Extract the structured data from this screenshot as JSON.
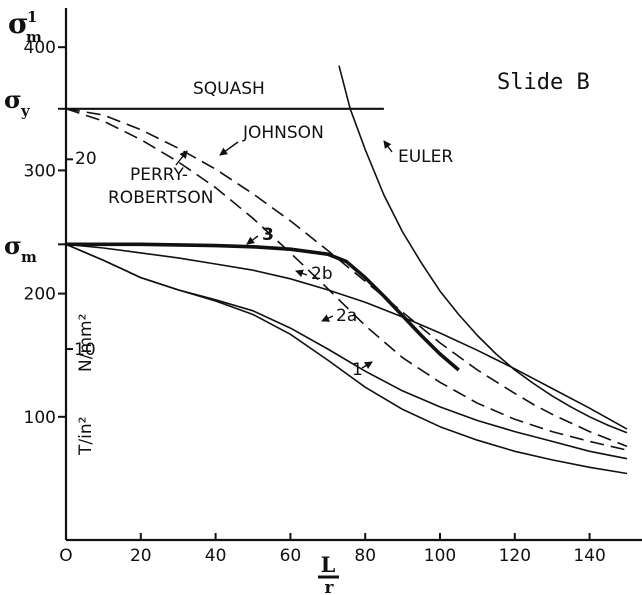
{
  "chart_data": {
    "type": "line",
    "title": "",
    "annotation": "Slide B",
    "xlabel": {
      "numerator": "L",
      "denominator": "r"
    },
    "ylabel": "σ'm",
    "ylabel_symbol": "σ",
    "ylabel_sub": "m",
    "ylabel_sup": "1",
    "xlim": [
      0,
      150
    ],
    "ylim": [
      0,
      420
    ],
    "x_ticks": [
      {
        "value": 0,
        "label": "O"
      },
      {
        "value": 20,
        "label": "20"
      },
      {
        "value": 40,
        "label": "40"
      },
      {
        "value": 60,
        "label": "60"
      },
      {
        "value": 80,
        "label": "80"
      },
      {
        "value": 100,
        "label": "100"
      },
      {
        "value": 120,
        "label": "120"
      },
      {
        "value": 140,
        "label": "140"
      }
    ],
    "y_ticks": [
      {
        "value": 100,
        "label": "100"
      },
      {
        "value": 200,
        "label": "200"
      },
      {
        "value": 300,
        "label": "300"
      },
      {
        "value": 400,
        "label": "400"
      }
    ],
    "y_named_levels": [
      {
        "value": 350,
        "sym": "σ",
        "sub": "y"
      },
      {
        "value": 240,
        "sym": "σ",
        "sub": "m"
      }
    ],
    "secondary_axis": {
      "unit_top": "N/mm²",
      "unit_bottom": "T/in²",
      "ticks": [
        {
          "value": 20,
          "label": "20",
          "at_primary": 309
        },
        {
          "value": 10,
          "label": "10",
          "at_primary": 155
        }
      ]
    },
    "series": [
      {
        "name": "SQUASH",
        "style": "solid",
        "width": 2.2,
        "x": [
          0,
          85
        ],
        "y": [
          350,
          350
        ]
      },
      {
        "name": "EULER",
        "style": "solid",
        "width": 1.6,
        "x": [
          73,
          76,
          80,
          85,
          90,
          95,
          100,
          105,
          110,
          115,
          120,
          125,
          130,
          135,
          140,
          145,
          150
        ],
        "y": [
          385,
          350,
          317,
          280,
          250,
          225,
          202,
          183,
          166,
          151,
          138,
          127,
          117,
          108,
          100,
          93,
          87
        ]
      },
      {
        "name": "JOHNSON",
        "style": "dashed",
        "width": 1.6,
        "x": [
          0,
          10,
          20,
          30,
          40,
          50,
          60,
          70,
          80,
          90,
          100,
          110,
          120,
          125,
          130,
          140,
          150
        ],
        "y": [
          350,
          345,
          333,
          318,
          301,
          281,
          259,
          235,
          210,
          185,
          160,
          138,
          119,
          110,
          102,
          88,
          76
        ]
      },
      {
        "name": "PERRY-ROBERTSON",
        "style": "dashed",
        "width": 1.6,
        "x": [
          0,
          10,
          20,
          30,
          40,
          50,
          60,
          70,
          80,
          90,
          100,
          110,
          120,
          130,
          140,
          150
        ],
        "y": [
          350,
          340,
          325,
          307,
          286,
          261,
          233,
          204,
          174,
          148,
          128,
          111,
          98,
          88,
          80,
          73
        ]
      },
      {
        "name": "3",
        "style": "solid",
        "width": 3.6,
        "x": [
          0,
          20,
          40,
          50,
          60,
          70,
          75,
          80,
          85,
          90,
          95,
          100,
          105
        ],
        "y": [
          240,
          240,
          239,
          238,
          236,
          232,
          226,
          213,
          198,
          182,
          166,
          151,
          138
        ]
      },
      {
        "name": "2b",
        "style": "solid",
        "width": 1.6,
        "x": [
          0,
          10,
          20,
          30,
          40,
          50,
          60,
          70,
          80,
          90,
          100,
          110,
          120,
          130,
          140,
          150
        ],
        "y": [
          240,
          237,
          233,
          229,
          224,
          219,
          212,
          203,
          193,
          181,
          168,
          154,
          139,
          123,
          107,
          90
        ]
      },
      {
        "name": "2a",
        "style": "solid",
        "width": 1.6,
        "x": [
          0,
          10,
          20,
          30,
          40,
          50,
          60,
          70,
          80,
          90,
          100,
          110,
          120,
          130,
          140,
          150
        ],
        "y": [
          240,
          227,
          213,
          203,
          195,
          186,
          172,
          155,
          137,
          121,
          108,
          97,
          88,
          80,
          72,
          66
        ]
      },
      {
        "name": "1",
        "style": "solid",
        "width": 1.6,
        "x": [
          0,
          10,
          20,
          30,
          40,
          50,
          60,
          70,
          80,
          90,
          100,
          110,
          120,
          130,
          140,
          150
        ],
        "y": [
          240,
          227,
          213,
          203,
          194,
          183,
          167,
          146,
          124,
          106,
          92,
          81,
          72,
          65,
          59,
          54
        ]
      }
    ],
    "curve_labels": [
      {
        "text": "SQUASH",
        "series": "SQUASH"
      },
      {
        "text": "JOHNSON",
        "series": "JOHNSON"
      },
      {
        "text": "EULER",
        "series": "EULER"
      },
      {
        "text": "PERRY-",
        "series": "PERRY-ROBERTSON"
      },
      {
        "text": "ROBERTSON",
        "series": "PERRY-ROBERTSON"
      },
      {
        "text": "3",
        "series": "3"
      },
      {
        "text": "2b",
        "series": "2b"
      },
      {
        "text": "2a",
        "series": "2a"
      },
      {
        "text": "1",
        "series": "1"
      }
    ],
    "grid": false,
    "legend": "none"
  }
}
